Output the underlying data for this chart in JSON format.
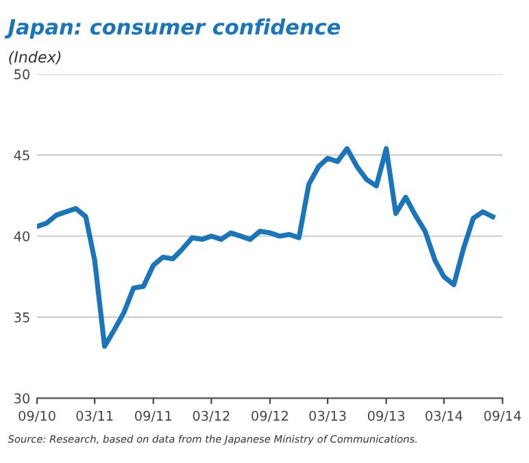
{
  "chart_data": {
    "type": "line",
    "title": "Japan: consumer confidence",
    "subtitle": "(Index)",
    "x": [
      "2010-09",
      "2010-10",
      "2010-11",
      "2010-12",
      "2011-01",
      "2011-02",
      "2011-03",
      "2011-04",
      "2011-05",
      "2011-06",
      "2011-07",
      "2011-08",
      "2011-09",
      "2011-10",
      "2011-11",
      "2011-12",
      "2012-01",
      "2012-02",
      "2012-03",
      "2012-04",
      "2012-05",
      "2012-06",
      "2012-07",
      "2012-08",
      "2012-09",
      "2012-10",
      "2012-11",
      "2012-12",
      "2013-01",
      "2013-02",
      "2013-03",
      "2013-04",
      "2013-05",
      "2013-06",
      "2013-07",
      "2013-08",
      "2013-09",
      "2013-10",
      "2013-11",
      "2013-12",
      "2014-01",
      "2014-02",
      "2014-03",
      "2014-04",
      "2014-05",
      "2014-06",
      "2014-07",
      "2014-08"
    ],
    "series": [
      {
        "color": "#1a75bb",
        "values": [
          40.6,
          40.8,
          41.3,
          41.5,
          41.7,
          41.2,
          38.5,
          33.2,
          34.2,
          35.3,
          36.8,
          36.9,
          38.2,
          38.7,
          38.6,
          39.2,
          39.9,
          39.8,
          40.0,
          39.8,
          40.2,
          40.0,
          39.8,
          40.3,
          40.2,
          40.0,
          40.1,
          39.9,
          43.2,
          44.3,
          44.8,
          44.6,
          45.4,
          44.3,
          43.5,
          43.1,
          45.4,
          41.4,
          42.4,
          41.3,
          40.3,
          38.5,
          37.5,
          37.0,
          39.2,
          41.1,
          41.5,
          41.2
        ]
      }
    ],
    "xlim": [
      "2010-09",
      "2014-09"
    ],
    "xticks": [
      {
        "value": "2010-09",
        "label": "09/10"
      },
      {
        "value": "2011-03",
        "label": "03/11"
      },
      {
        "value": "2011-09",
        "label": "09/11"
      },
      {
        "value": "2012-03",
        "label": "03/12"
      },
      {
        "value": "2012-09",
        "label": "09/12"
      },
      {
        "value": "2013-03",
        "label": "03/13"
      },
      {
        "value": "2013-09",
        "label": "09/13"
      },
      {
        "value": "2014-03",
        "label": "03/14"
      },
      {
        "value": "2014-09",
        "label": "09/14"
      }
    ],
    "ylim": [
      30,
      50
    ],
    "yticks": [
      30,
      35,
      40,
      45,
      50
    ],
    "grid": "y",
    "line_style": "solid",
    "annotations": [
      "Source: Research, based on data from the Japanese Ministry of Communications."
    ]
  }
}
